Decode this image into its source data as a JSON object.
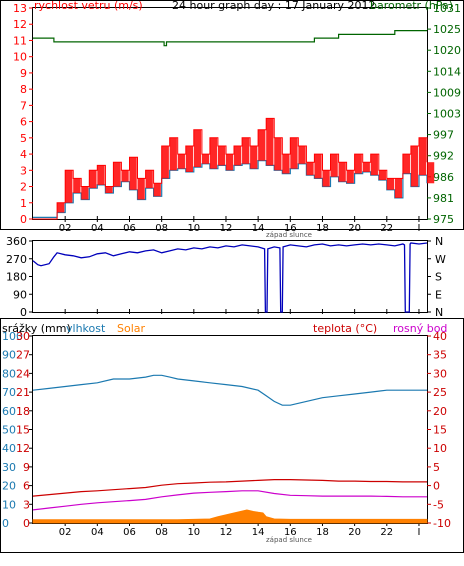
{
  "chart_data": [
    {
      "type": "line",
      "title": "24 hour graph day : 17 January 2012",
      "left_label": "rychlost vetru (m/s)",
      "right_label": "barometr (hPa)",
      "x_ticks": [
        "02",
        "04",
        "06",
        "08",
        "10",
        "12",
        "14",
        "16",
        "18",
        "20",
        "22",
        "I"
      ],
      "sunset_label": "západ slunce",
      "y_left_ticks": [
        "0",
        "1",
        "2",
        "3",
        "4",
        "5",
        "6",
        "7",
        "8",
        "9",
        "10",
        "11",
        "12",
        "13"
      ],
      "y_right_ticks": [
        "975",
        "981",
        "986",
        "992",
        "997",
        "1003",
        "1009",
        "1014",
        "1020",
        "1025",
        "1031"
      ],
      "ylim_left": [
        0,
        13
      ],
      "ylim_right": [
        975,
        1031
      ],
      "colors": {
        "gust": "#ff0000",
        "wind": "#1b79b0",
        "barometer": "#006400"
      },
      "series": [
        {
          "key": "barometer",
          "axis": "right",
          "x": [
            0.0,
            1.2,
            1.3,
            8.0,
            8.15,
            8.3,
            15.5,
            17.5,
            19.0,
            22.0,
            22.5,
            24.5
          ],
          "values": [
            1023,
            1023,
            1022,
            1022,
            1021,
            1022,
            1022,
            1023,
            1024,
            1024,
            1025,
            1025
          ]
        },
        {
          "key": "wind",
          "axis": "left",
          "x": [
            0.0,
            1.0,
            1.5,
            2.0,
            2.5,
            3.0,
            3.5,
            4.0,
            4.5,
            5.0,
            5.5,
            6.0,
            6.5,
            7.0,
            7.5,
            8.0,
            8.5,
            9.0,
            9.5,
            10.0,
            10.5,
            11.0,
            11.5,
            12.0,
            12.5,
            13.0,
            13.5,
            14.0,
            14.5,
            15.0,
            15.5,
            16.0,
            16.5,
            17.0,
            17.5,
            18.0,
            18.5,
            19.0,
            19.5,
            20.0,
            20.5,
            21.0,
            21.5,
            22.0,
            22.5,
            23.0,
            23.5,
            24.0,
            24.5
          ],
          "values": [
            0.1,
            0.1,
            0.4,
            1.0,
            1.6,
            1.2,
            1.9,
            2.1,
            1.6,
            2.0,
            2.3,
            1.8,
            1.2,
            1.9,
            1.4,
            2.5,
            3.0,
            3.1,
            2.9,
            3.2,
            3.4,
            3.1,
            3.3,
            3.0,
            3.3,
            3.4,
            3.1,
            3.6,
            3.3,
            3.0,
            2.8,
            3.1,
            3.4,
            2.7,
            2.5,
            2.0,
            2.6,
            2.3,
            2.2,
            2.8,
            2.9,
            2.7,
            2.4,
            1.8,
            1.3,
            2.8,
            2.0,
            2.7,
            2.2
          ]
        },
        {
          "key": "gust",
          "axis": "left",
          "x": [
            0.0,
            1.0,
            1.5,
            2.0,
            2.5,
            3.0,
            3.5,
            4.0,
            4.5,
            5.0,
            5.5,
            6.0,
            6.5,
            7.0,
            7.5,
            8.0,
            8.5,
            9.0,
            9.5,
            10.0,
            10.5,
            11.0,
            11.5,
            12.0,
            12.5,
            13.0,
            13.5,
            14.0,
            14.5,
            15.0,
            15.5,
            16.0,
            16.5,
            17.0,
            17.5,
            18.0,
            18.5,
            19.0,
            19.5,
            20.0,
            20.5,
            21.0,
            21.5,
            22.0,
            22.5,
            23.0,
            23.5,
            24.0,
            24.5
          ],
          "values": [
            0.0,
            0.0,
            1.0,
            3.0,
            2.5,
            2.0,
            3.0,
            3.3,
            2.0,
            3.5,
            3.0,
            3.8,
            2.5,
            3.0,
            2.2,
            4.5,
            5.0,
            4.0,
            4.5,
            5.5,
            4.0,
            5.0,
            4.5,
            4.0,
            4.5,
            5.0,
            4.5,
            5.5,
            6.2,
            5.0,
            4.0,
            5.0,
            4.5,
            3.5,
            4.0,
            3.0,
            4.0,
            3.5,
            3.0,
            4.0,
            3.5,
            4.0,
            3.0,
            2.5,
            2.5,
            4.0,
            4.5,
            5.0,
            3.5
          ]
        }
      ]
    },
    {
      "type": "line",
      "title": "",
      "y_left_ticks": [
        "360",
        "270",
        "180",
        "90",
        "0"
      ],
      "y_right_ticks": [
        "N",
        "W",
        "S",
        "E",
        "N"
      ],
      "ylim": [
        0,
        360
      ],
      "colors": {
        "direction": "#0000bb"
      },
      "series": [
        {
          "key": "direction",
          "x": [
            0.0,
            0.3,
            0.5,
            1.0,
            1.3,
            1.5,
            2.0,
            2.5,
            3.0,
            3.5,
            4.0,
            4.5,
            5.0,
            5.5,
            6.0,
            6.5,
            7.0,
            7.5,
            8.0,
            8.5,
            9.0,
            9.5,
            10.0,
            10.5,
            11.0,
            11.5,
            12.0,
            12.5,
            13.0,
            13.5,
            14.0,
            14.4,
            14.45,
            14.55,
            14.6,
            15.0,
            15.35,
            15.4,
            15.5,
            15.55,
            16.0,
            16.5,
            17.0,
            17.5,
            18.0,
            18.5,
            19.0,
            19.5,
            20.0,
            20.5,
            21.0,
            21.5,
            22.0,
            22.5,
            23.0,
            23.1,
            23.15,
            23.4,
            23.45,
            23.5,
            24.0,
            24.5
          ],
          "values": [
            260,
            240,
            235,
            245,
            280,
            300,
            290,
            285,
            275,
            280,
            295,
            300,
            285,
            295,
            305,
            300,
            310,
            315,
            300,
            310,
            320,
            315,
            325,
            320,
            330,
            325,
            335,
            330,
            340,
            335,
            330,
            320,
            0,
            0,
            320,
            330,
            325,
            0,
            0,
            330,
            340,
            335,
            330,
            340,
            345,
            335,
            340,
            335,
            340,
            345,
            340,
            345,
            340,
            335,
            345,
            340,
            0,
            0,
            345,
            350,
            345,
            350
          ]
        }
      ]
    },
    {
      "type": "line",
      "title": "",
      "legend": [
        "srážky (mm)",
        "vlhkost",
        "Solar",
        "teplota (°C)",
        "rosný bod"
      ],
      "x_ticks": [
        "02",
        "04",
        "06",
        "08",
        "10",
        "12",
        "14",
        "16",
        "18",
        "20",
        "22",
        "I"
      ],
      "sunset_label": "západ slunce",
      "y_left1_ticks": [
        "0",
        "10",
        "20",
        "30",
        "40",
        "50",
        "60",
        "70",
        "80",
        "90",
        "100"
      ],
      "y_left2_ticks": [
        "0",
        "3",
        "6",
        "9",
        "12",
        "15",
        "18",
        "21",
        "24",
        "27",
        "30"
      ],
      "y_right_ticks": [
        "-10",
        "-5",
        "0",
        "5",
        "10",
        "15",
        "20",
        "25",
        "30",
        "35",
        "40"
      ],
      "ylim_left1": [
        0,
        100
      ],
      "ylim_right": [
        -10,
        40
      ],
      "colors": {
        "humidity": "#1b79b0",
        "temperature": "#cc0000",
        "dewpoint": "#cc00cc",
        "solar": "#ff8000",
        "precip_label": "#000000"
      },
      "series": [
        {
          "key": "humidity",
          "axis": "left1",
          "x": [
            0.0,
            1.0,
            2.0,
            3.0,
            4.0,
            5.0,
            6.0,
            7.0,
            7.5,
            8.0,
            8.5,
            9.0,
            10.0,
            11.0,
            12.0,
            13.0,
            14.0,
            14.5,
            15.0,
            15.5,
            16.0,
            17.0,
            18.0,
            19.0,
            20.0,
            21.0,
            22.0,
            23.0,
            24.0,
            24.5
          ],
          "values": [
            71,
            72,
            73,
            74,
            75,
            77,
            77,
            78,
            79,
            79,
            78,
            77,
            76,
            75,
            74,
            73,
            71,
            68,
            65,
            63,
            63,
            65,
            67,
            68,
            69,
            70,
            71,
            71,
            71,
            71
          ]
        },
        {
          "key": "temperature",
          "axis": "right",
          "x": [
            0.0,
            1.0,
            2.0,
            3.0,
            4.0,
            5.0,
            6.0,
            7.0,
            8.0,
            9.0,
            10.0,
            11.0,
            12.0,
            13.0,
            14.0,
            15.0,
            16.0,
            17.0,
            18.0,
            19.0,
            20.0,
            21.0,
            22.0,
            23.0,
            24.0,
            24.5
          ],
          "values": [
            -2.8,
            -2.4,
            -2.0,
            -1.6,
            -1.4,
            -1.1,
            -0.8,
            -0.5,
            0.1,
            0.5,
            0.7,
            0.9,
            1.0,
            1.2,
            1.4,
            1.6,
            1.6,
            1.5,
            1.4,
            1.2,
            1.2,
            1.1,
            1.1,
            1.0,
            1.0,
            1.0
          ]
        },
        {
          "key": "dewpoint",
          "axis": "right",
          "x": [
            0.0,
            1.0,
            2.0,
            3.0,
            4.0,
            5.0,
            6.0,
            7.0,
            8.0,
            9.0,
            10.0,
            11.0,
            12.0,
            13.0,
            14.0,
            15.0,
            16.0,
            17.0,
            18.0,
            19.0,
            20.0,
            21.0,
            22.0,
            23.0,
            24.0,
            24.5
          ],
          "values": [
            -6.5,
            -6.0,
            -5.5,
            -5.0,
            -4.6,
            -4.3,
            -4.0,
            -3.7,
            -3.0,
            -2.5,
            -2.0,
            -1.8,
            -1.6,
            -1.4,
            -1.4,
            -2.1,
            -2.6,
            -2.7,
            -2.8,
            -2.8,
            -2.8,
            -2.8,
            -2.9,
            -3.0,
            -3.0,
            -3.0
          ]
        },
        {
          "key": "solar",
          "axis": "right",
          "x": [
            0.0,
            9.0,
            10.0,
            11.0,
            11.5,
            12.0,
            12.5,
            13.0,
            13.3,
            13.7,
            14.0,
            14.3,
            14.5,
            15.0,
            16.0,
            24.5
          ],
          "values": [
            -9.1,
            -9.1,
            -9.0,
            -8.9,
            -8.3,
            -7.8,
            -7.3,
            -6.8,
            -6.5,
            -6.9,
            -7.1,
            -7.3,
            -8.3,
            -8.9,
            -9.0,
            -9.0
          ]
        }
      ]
    }
  ]
}
